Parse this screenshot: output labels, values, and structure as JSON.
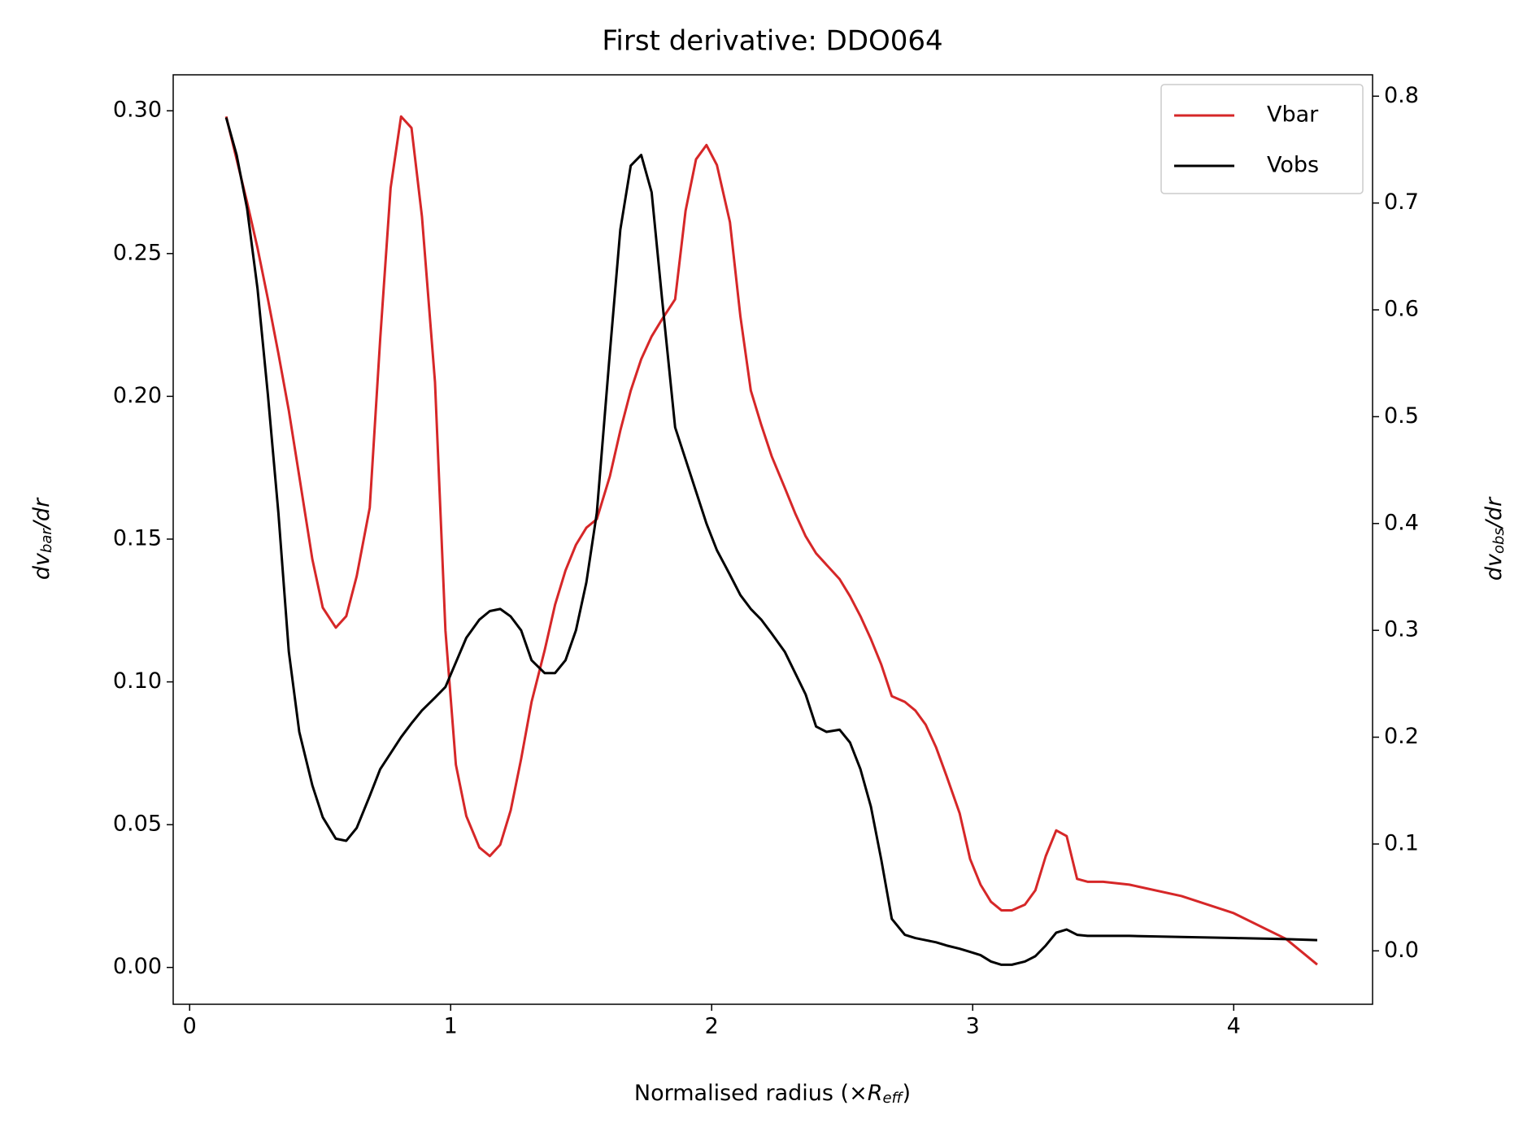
{
  "chart_data": {
    "type": "line",
    "title": "First derivative: DDO064",
    "xlabel": {
      "text": "Normalised radius (×",
      "symbol": "R",
      "sub": "eff",
      "end": ")"
    },
    "ylabel": {
      "text": "dv",
      "sub": "bar",
      "end": "/dr",
      "color": "#d62728"
    },
    "y2label": {
      "text": "dv",
      "sub": "obs",
      "end": "/dr"
    },
    "x": [
      0.14,
      0.18,
      0.22,
      0.26,
      0.3,
      0.34,
      0.38,
      0.42,
      0.47,
      0.51,
      0.56,
      0.6,
      0.64,
      0.69,
      0.73,
      0.77,
      0.81,
      0.85,
      0.89,
      0.94,
      0.98,
      1.02,
      1.06,
      1.11,
      1.15,
      1.19,
      1.23,
      1.27,
      1.31,
      1.36,
      1.4,
      1.44,
      1.48,
      1.52,
      1.56,
      1.61,
      1.65,
      1.69,
      1.73,
      1.77,
      1.81,
      1.86,
      1.9,
      1.94,
      1.98,
      2.02,
      2.07,
      2.11,
      2.15,
      2.19,
      2.23,
      2.28,
      2.32,
      2.36,
      2.4,
      2.44,
      2.49,
      2.53,
      2.57,
      2.61,
      2.65,
      2.69,
      2.74,
      2.78,
      2.82,
      2.86,
      2.9,
      2.95,
      2.99,
      3.03,
      3.07,
      3.11,
      3.15,
      3.2,
      3.24,
      3.28,
      3.32,
      3.36,
      3.4,
      3.44,
      3.5,
      3.6,
      3.8,
      4.0,
      4.2,
      4.32
    ],
    "series": [
      {
        "name": "Vbar",
        "color": "#d62728",
        "axis": "y",
        "values": [
          0.298,
          0.283,
          0.268,
          0.252,
          0.234,
          0.215,
          0.195,
          0.172,
          0.143,
          0.126,
          0.119,
          0.123,
          0.137,
          0.161,
          0.22,
          0.273,
          0.298,
          0.294,
          0.263,
          0.205,
          0.118,
          0.071,
          0.053,
          0.042,
          0.039,
          0.043,
          0.055,
          0.073,
          0.093,
          0.111,
          0.127,
          0.139,
          0.148,
          0.154,
          0.157,
          0.172,
          0.188,
          0.202,
          0.213,
          0.221,
          0.227,
          0.234,
          0.265,
          0.283,
          0.288,
          0.281,
          0.261,
          0.228,
          0.202,
          0.19,
          0.179,
          0.168,
          0.159,
          0.151,
          0.145,
          0.141,
          0.136,
          0.13,
          0.123,
          0.115,
          0.106,
          0.095,
          0.093,
          0.09,
          0.085,
          0.077,
          0.067,
          0.054,
          0.038,
          0.029,
          0.023,
          0.02,
          0.02,
          0.022,
          0.027,
          0.039,
          0.048,
          0.046,
          0.031,
          0.03,
          0.03,
          0.029,
          0.025,
          0.019,
          0.01,
          0.001
        ]
      },
      {
        "name": "Vobs",
        "color": "#000000",
        "axis": "y2",
        "values": [
          0.78,
          0.745,
          0.695,
          0.62,
          0.52,
          0.41,
          0.28,
          0.205,
          0.155,
          0.125,
          0.105,
          0.103,
          0.115,
          0.145,
          0.17,
          0.185,
          0.2,
          0.213,
          0.225,
          0.237,
          0.247,
          0.27,
          0.293,
          0.31,
          0.318,
          0.32,
          0.313,
          0.3,
          0.272,
          0.26,
          0.26,
          0.272,
          0.3,
          0.345,
          0.41,
          0.56,
          0.675,
          0.735,
          0.745,
          0.71,
          0.61,
          0.49,
          0.46,
          0.43,
          0.4,
          0.375,
          0.352,
          0.333,
          0.32,
          0.31,
          0.297,
          0.28,
          0.26,
          0.24,
          0.21,
          0.205,
          0.207,
          0.195,
          0.17,
          0.135,
          0.085,
          0.03,
          0.015,
          0.012,
          0.01,
          0.008,
          0.005,
          0.002,
          -0.001,
          -0.004,
          -0.01,
          -0.013,
          -0.013,
          -0.01,
          -0.005,
          0.005,
          0.017,
          0.02,
          0.015,
          0.014,
          0.014,
          0.014,
          0.013,
          0.012,
          0.011,
          0.01
        ]
      }
    ],
    "xlim": [
      -0.063,
      4.532
    ],
    "xticks": [
      0,
      1,
      2,
      3,
      4
    ],
    "ylim": [
      -0.0129,
      0.3126
    ],
    "yticks": [
      {
        "value": 0,
        "label": "0.00"
      },
      {
        "value": 0.05,
        "label": "0.05"
      },
      {
        "value": 0.1,
        "label": "0.10"
      },
      {
        "value": 0.15,
        "label": "0.15"
      },
      {
        "value": 0.2,
        "label": "0.20"
      },
      {
        "value": 0.25,
        "label": "0.25"
      },
      {
        "value": 0.3,
        "label": "0.30"
      }
    ],
    "y2lim": [
      -0.05,
      0.82
    ],
    "y2ticks": [
      {
        "value": 0,
        "label": "0.0"
      },
      0.1,
      0.2,
      0.3,
      0.4,
      0.5,
      0.6,
      0.7,
      0.8
    ],
    "legend": "upper right"
  }
}
